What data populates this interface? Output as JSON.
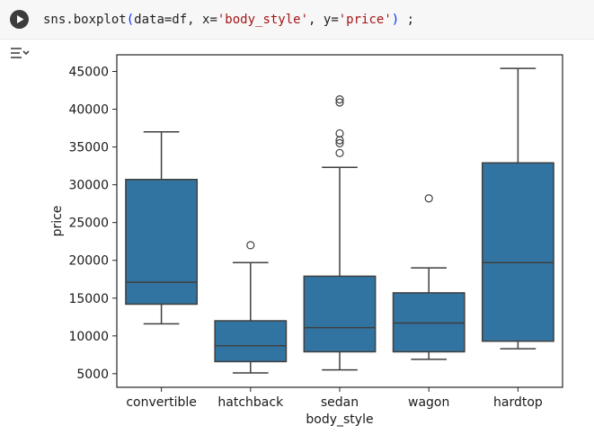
{
  "code_cell": {
    "code_tokens": [
      {
        "text": "sns.boxplot",
        "cls": "tok-punc"
      },
      {
        "text": "(",
        "cls": "tok-paren"
      },
      {
        "text": "data=df, x=",
        "cls": "tok-punc"
      },
      {
        "text": "'body_style'",
        "cls": "tok-str"
      },
      {
        "text": ", y=",
        "cls": "tok-punc"
      },
      {
        "text": "'price'",
        "cls": "tok-str"
      },
      {
        "text": ")",
        "cls": "tok-paren"
      },
      {
        "text": " ;",
        "cls": "tok-punc"
      }
    ],
    "run_icon": "play-icon",
    "output_toggle_icon": "output-toggle-icon"
  },
  "colors": {
    "box_fill": "#3274a1",
    "line": "#3f3f3f",
    "frame": "#262626"
  },
  "chart_data": {
    "type": "box",
    "xlabel": "body_style",
    "ylabel": "price",
    "ylim": [
      3200,
      47200
    ],
    "yticks": [
      5000,
      10000,
      15000,
      20000,
      25000,
      30000,
      35000,
      40000,
      45000
    ],
    "categories": [
      "convertible",
      "hatchback",
      "sedan",
      "wagon",
      "hardtop"
    ],
    "boxes": [
      {
        "category": "convertible",
        "whisker_low": 11600,
        "q1": 14200,
        "median": 17100,
        "q3": 30700,
        "whisker_high": 37000,
        "outliers": []
      },
      {
        "category": "hatchback",
        "whisker_low": 5100,
        "q1": 6600,
        "median": 8700,
        "q3": 12000,
        "whisker_high": 19700,
        "outliers": [
          22000
        ]
      },
      {
        "category": "sedan",
        "whisker_low": 5500,
        "q1": 7900,
        "median": 11100,
        "q3": 17900,
        "whisker_high": 32300,
        "outliers": [
          34200,
          35500,
          35900,
          36800,
          40900,
          41300
        ]
      },
      {
        "category": "wagon",
        "whisker_low": 6900,
        "q1": 7900,
        "median": 11700,
        "q3": 15700,
        "whisker_high": 19000,
        "outliers": [
          28200
        ]
      },
      {
        "category": "hardtop",
        "whisker_low": 8300,
        "q1": 9300,
        "median": 19700,
        "q3": 32900,
        "whisker_high": 45400,
        "outliers": []
      }
    ]
  }
}
